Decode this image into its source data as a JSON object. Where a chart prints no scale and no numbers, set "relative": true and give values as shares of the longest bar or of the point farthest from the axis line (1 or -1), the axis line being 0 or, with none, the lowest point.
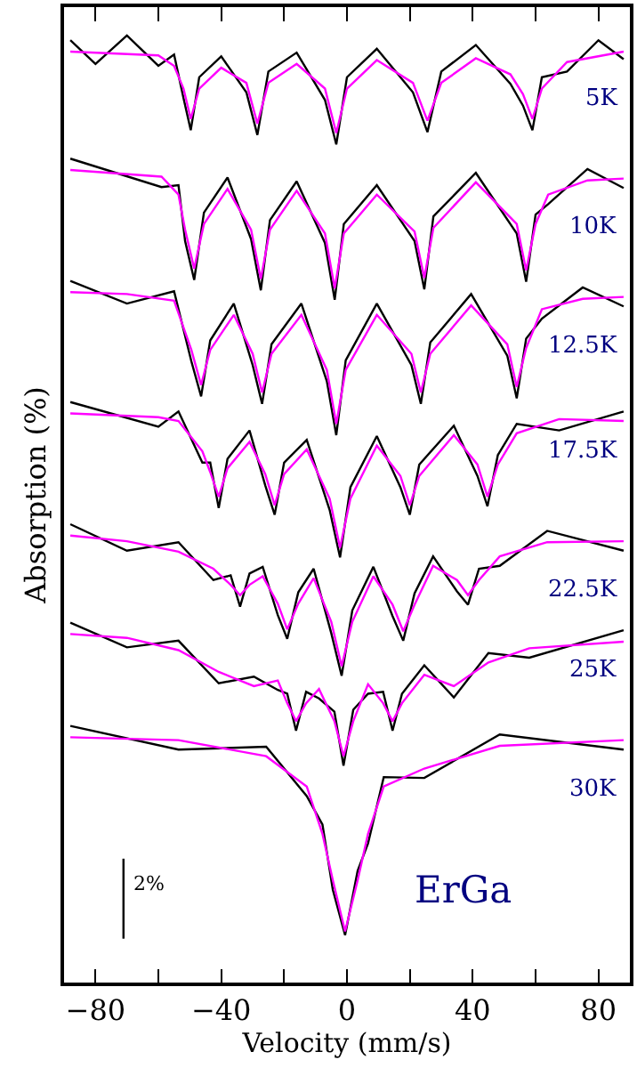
{
  "chart_data": {
    "type": "line",
    "relative": true,
    "xlabel": "Velocity (mm/s)",
    "ylabel": "Absorption (%)",
    "xlim": [
      -90,
      90
    ],
    "xticks": [
      -80,
      {
        "value": -60,
        "label": null
      },
      -40,
      {
        "value": -20,
        "label": null
      },
      0,
      {
        "value": 20,
        "label": null
      },
      40,
      {
        "value": 60,
        "label": null
      },
      80
    ],
    "tick_labels": "x",
    "legend": false,
    "marker": "none",
    "annotations": [
      "ErGa",
      "2%"
    ],
    "series": [
      {
        "name": "5K",
        "color": "#000000",
        "x": [
          -88,
          -80,
          -70,
          -60,
          -55,
          -52,
          -49.7,
          -47,
          -40,
          -32,
          -28.5,
          -25,
          -16,
          -7,
          -3.4,
          0,
          9.5,
          21,
          25.6,
          30,
          41,
          52,
          56,
          59,
          62,
          70,
          80,
          88
        ],
        "values": [
          0.995,
          0.97,
          1.0,
          0.968,
          0.98,
          0.934,
          0.9,
          0.956,
          0.978,
          0.94,
          0.895,
          0.962,
          0.982,
          0.932,
          0.885,
          0.956,
          0.986,
          0.94,
          0.898,
          0.962,
          0.99,
          0.949,
          0.926,
          0.9,
          0.956,
          0.962,
          0.995,
          0.975
        ]
      },
      {
        "color": "#ff00ff",
        "x": [
          -88,
          -60,
          -55,
          -52,
          -49.7,
          -47,
          -40,
          -32,
          -28.5,
          -25,
          -16,
          -7,
          -3.4,
          0,
          9.5,
          21,
          25.6,
          30,
          41,
          52,
          56,
          59,
          62,
          70,
          88
        ],
        "values": [
          0.983,
          0.979,
          0.968,
          0.944,
          0.912,
          0.944,
          0.966,
          0.95,
          0.907,
          0.95,
          0.97,
          0.944,
          0.897,
          0.944,
          0.974,
          0.95,
          0.91,
          0.95,
          0.976,
          0.959,
          0.938,
          0.912,
          0.944,
          0.972,
          0.983
        ]
      },
      {
        "name": "10K",
        "color": "#000000",
        "x": [
          -88,
          -59,
          -53.6,
          -51.5,
          -48.6,
          -45.5,
          -38,
          -30.5,
          -27.4,
          -24.5,
          -16,
          -7,
          -3.9,
          -1,
          9.5,
          21.5,
          24.6,
          27.5,
          41,
          54,
          57,
          60,
          64,
          76.5,
          88
        ],
        "values": [
          0.87,
          0.84,
          0.842,
          0.783,
          0.742,
          0.813,
          0.85,
          0.785,
          0.731,
          0.805,
          0.846,
          0.781,
          0.721,
          0.801,
          0.842,
          0.783,
          0.732,
          0.809,
          0.855,
          0.791,
          0.74,
          0.811,
          0.822,
          0.859,
          0.839
        ]
      },
      {
        "color": "#ff00ff",
        "x": [
          -88,
          -59,
          -53.6,
          -51.5,
          -48.6,
          -45.5,
          -38,
          -30.5,
          -27.4,
          -24.5,
          -16,
          -7,
          -3.9,
          -1,
          9.5,
          21.5,
          24.6,
          27.5,
          41,
          54,
          57,
          60,
          64,
          76.5,
          88
        ],
        "values": [
          0.858,
          0.851,
          0.832,
          0.795,
          0.754,
          0.801,
          0.838,
          0.795,
          0.743,
          0.795,
          0.836,
          0.791,
          0.733,
          0.791,
          0.832,
          0.793,
          0.744,
          0.797,
          0.845,
          0.801,
          0.752,
          0.801,
          0.832,
          0.847,
          0.849
        ]
      },
      {
        "name": "12.5K",
        "color": "#000000",
        "x": [
          -88,
          -70,
          -55,
          -49.5,
          -46.4,
          -43.5,
          -36,
          -30,
          -27,
          -24,
          -14.5,
          -6.4,
          -3.4,
          -0.4,
          9.5,
          20.5,
          23.5,
          26.5,
          39.5,
          51,
          54,
          57,
          62,
          75,
          88
        ],
        "values": [
          0.741,
          0.717,
          0.73,
          0.656,
          0.619,
          0.678,
          0.717,
          0.652,
          0.611,
          0.674,
          0.717,
          0.635,
          0.578,
          0.657,
          0.717,
          0.652,
          0.611,
          0.676,
          0.727,
          0.662,
          0.617,
          0.68,
          0.701,
          0.734,
          0.714
        ]
      },
      {
        "color": "#ff00ff",
        "x": [
          -88,
          -70,
          -55,
          -49.5,
          -46.4,
          -43.5,
          -36,
          -30,
          -27,
          -24,
          -14.5,
          -6.4,
          -3.4,
          -0.4,
          9.5,
          20.5,
          23.5,
          26.5,
          39.5,
          51,
          54,
          57,
          62,
          75,
          88
        ],
        "values": [
          0.729,
          0.727,
          0.72,
          0.668,
          0.631,
          0.668,
          0.705,
          0.664,
          0.623,
          0.664,
          0.705,
          0.647,
          0.59,
          0.647,
          0.705,
          0.664,
          0.623,
          0.664,
          0.715,
          0.674,
          0.629,
          0.67,
          0.711,
          0.722,
          0.724
        ]
      },
      {
        "name": "17.5K",
        "color": "#000000",
        "x": [
          -88,
          -60,
          -53.6,
          -46,
          -43.5,
          -40.8,
          -38,
          -31,
          -26,
          -23,
          -20,
          -12.8,
          -5.5,
          -2.2,
          1.1,
          9.5,
          17,
          20,
          23,
          34,
          41.5,
          44.7,
          48,
          54,
          67.5,
          88
        ],
        "values": [
          0.613,
          0.587,
          0.603,
          0.549,
          0.549,
          0.501,
          0.553,
          0.583,
          0.525,
          0.494,
          0.549,
          0.573,
          0.499,
          0.449,
          0.523,
          0.577,
          0.523,
          0.494,
          0.547,
          0.588,
          0.535,
          0.503,
          0.557,
          0.59,
          0.583,
          0.603
        ]
      },
      {
        "color": "#ff00ff",
        "x": [
          -88,
          -60,
          -53.6,
          -46,
          -43.5,
          -40.8,
          -38,
          -31,
          -26,
          -23,
          -20,
          -12.8,
          -5.5,
          -2.2,
          1.1,
          9.5,
          17,
          20,
          23,
          34,
          41.5,
          44.7,
          48,
          54,
          67.5,
          88
        ],
        "values": [
          0.601,
          0.597,
          0.593,
          0.561,
          0.539,
          0.513,
          0.543,
          0.571,
          0.537,
          0.504,
          0.537,
          0.563,
          0.511,
          0.459,
          0.511,
          0.567,
          0.535,
          0.504,
          0.535,
          0.578,
          0.547,
          0.513,
          0.547,
          0.58,
          0.595,
          0.593
        ]
      },
      {
        "name": "22.5K",
        "color": "#000000",
        "x": [
          -88,
          -70,
          -53.6,
          -42.5,
          -37,
          -34,
          -31,
          -26.8,
          -22,
          -19,
          -15.5,
          -10.6,
          -5,
          -1.7,
          1.7,
          8.4,
          14.5,
          17.9,
          21.5,
          27.4,
          35,
          38.5,
          42,
          48.6,
          63.7,
          88
        ],
        "values": [
          0.484,
          0.456,
          0.465,
          0.425,
          0.43,
          0.397,
          0.432,
          0.439,
          0.388,
          0.363,
          0.412,
          0.437,
          0.369,
          0.324,
          0.393,
          0.439,
          0.387,
          0.361,
          0.411,
          0.45,
          0.413,
          0.399,
          0.437,
          0.44,
          0.477,
          0.456
        ]
      },
      {
        "color": "#ff00ff",
        "x": [
          -88,
          -70,
          -53.6,
          -42.5,
          -37,
          -34,
          -31,
          -26.8,
          -22,
          -19,
          -15.5,
          -10.6,
          -5,
          -1.7,
          1.7,
          8.4,
          14.5,
          17.9,
          21.5,
          27.4,
          35,
          38.5,
          42,
          48.6,
          63.7,
          88
        ],
        "values": [
          0.472,
          0.466,
          0.455,
          0.437,
          0.42,
          0.409,
          0.42,
          0.429,
          0.4,
          0.373,
          0.4,
          0.427,
          0.381,
          0.334,
          0.381,
          0.429,
          0.399,
          0.371,
          0.399,
          0.44,
          0.425,
          0.409,
          0.425,
          0.45,
          0.465,
          0.466
        ]
      },
      {
        "name": "25K",
        "color": "#000000",
        "x": [
          -88,
          -70,
          -53.6,
          -40.8,
          -29.6,
          -22,
          -19,
          -16.2,
          -13,
          -8.9,
          -4,
          -1.1,
          2,
          6.7,
          11.5,
          14.5,
          17.5,
          24.6,
          34,
          45,
          58,
          88
        ],
        "values": [
          0.38,
          0.354,
          0.361,
          0.316,
          0.323,
          0.309,
          0.305,
          0.266,
          0.307,
          0.3,
          0.286,
          0.229,
          0.288,
          0.305,
          0.307,
          0.266,
          0.305,
          0.335,
          0.301,
          0.348,
          0.343,
          0.372
        ]
      },
      {
        "color": "#ff00ff",
        "x": [
          -88,
          -70,
          -53.6,
          -40.8,
          -29.6,
          -22,
          -19,
          -16.2,
          -13,
          -8.9,
          -4,
          -1.1,
          2,
          6.7,
          11.5,
          14.5,
          17.5,
          24.6,
          34,
          45,
          58,
          88
        ],
        "values": [
          0.368,
          0.364,
          0.351,
          0.328,
          0.313,
          0.319,
          0.295,
          0.276,
          0.295,
          0.31,
          0.276,
          0.239,
          0.276,
          0.315,
          0.295,
          0.276,
          0.295,
          0.325,
          0.313,
          0.338,
          0.353,
          0.36
        ]
      },
      {
        "name": "30K",
        "color": "#000000",
        "x": [
          -88,
          -53.6,
          -25.7,
          -12.8,
          -7.8,
          -4.5,
          -0.6,
          3.4,
          6.7,
          11.7,
          24.6,
          48.6,
          88
        ],
        "values": [
          0.271,
          0.246,
          0.249,
          0.197,
          0.167,
          0.098,
          0.05,
          0.118,
          0.147,
          0.217,
          0.216,
          0.262,
          0.246
        ]
      },
      {
        "color": "#ff00ff",
        "x": [
          -88,
          -53.6,
          -25.7,
          -12.8,
          -7.8,
          -4.5,
          -0.6,
          3.4,
          6.7,
          11.7,
          24.6,
          48.6,
          88
        ],
        "values": [
          0.259,
          0.256,
          0.239,
          0.207,
          0.157,
          0.108,
          0.054,
          0.108,
          0.157,
          0.207,
          0.226,
          0.25,
          0.256
        ]
      }
    ]
  }
}
